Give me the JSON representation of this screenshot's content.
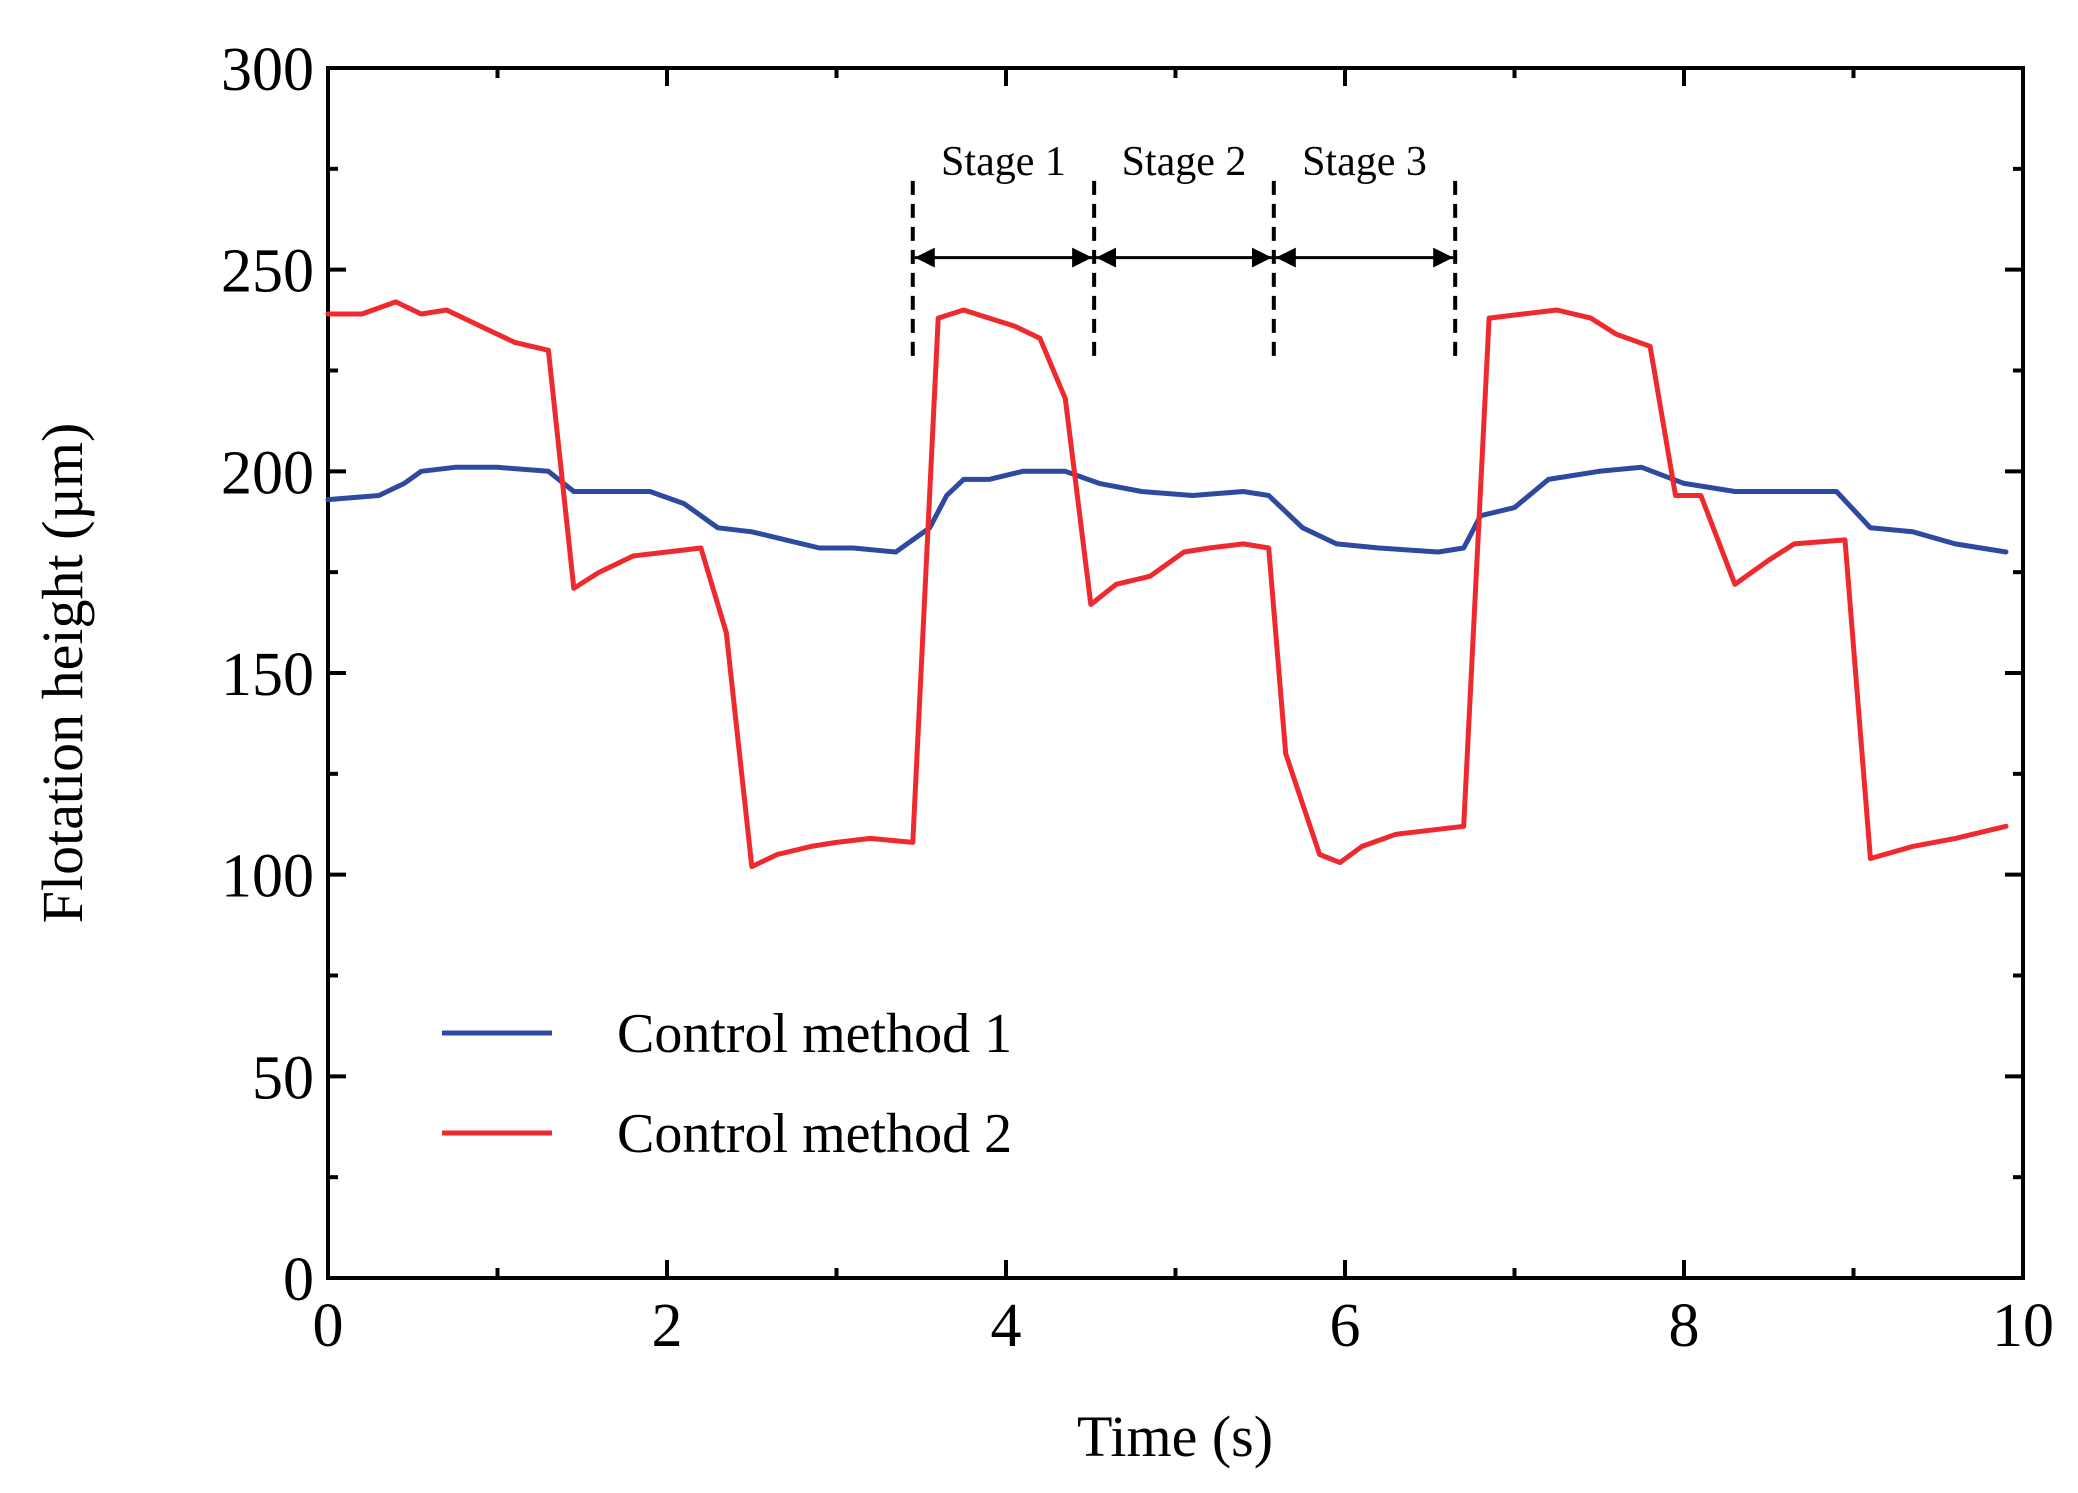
{
  "chart_data": {
    "type": "line",
    "title": "",
    "xlabel": "Time (s)",
    "ylabel": "Flotation height (µm)",
    "xlim": [
      0,
      10
    ],
    "ylim": [
      0,
      300
    ],
    "xticks": [
      0,
      2,
      4,
      6,
      8,
      10
    ],
    "yticks": [
      0,
      50,
      100,
      150,
      200,
      250,
      300
    ],
    "legend_location": "lower-left",
    "series": [
      {
        "name": "Control method 1",
        "color": "#2e4aa0",
        "x": [
          0,
          0.3,
          0.45,
          0.55,
          0.75,
          1.0,
          1.3,
          1.45,
          1.9,
          2.1,
          2.3,
          2.5,
          2.7,
          2.9,
          3.1,
          3.35,
          3.55,
          3.65,
          3.75,
          3.9,
          4.1,
          4.35,
          4.55,
          4.8,
          5.1,
          5.4,
          5.55,
          5.75,
          5.95,
          6.2,
          6.55,
          6.7,
          6.8,
          7.0,
          7.2,
          7.5,
          7.75,
          8.0,
          8.3,
          8.7,
          8.9,
          9.1,
          9.35,
          9.6,
          9.9
        ],
        "values": [
          193,
          194,
          197,
          200,
          201,
          201,
          200,
          195,
          195,
          192,
          186,
          185,
          183,
          181,
          181,
          180,
          186,
          194,
          198,
          198,
          200,
          200,
          197,
          195,
          194,
          195,
          194,
          186,
          182,
          181,
          180,
          181,
          189,
          191,
          198,
          200,
          201,
          197,
          195,
          195,
          195,
          186,
          185,
          182,
          180
        ]
      },
      {
        "name": "Control method 2",
        "color": "#ee2a2f",
        "x": [
          0,
          0.2,
          0.4,
          0.55,
          0.7,
          0.95,
          1.1,
          1.3,
          1.45,
          1.6,
          1.8,
          2.0,
          2.2,
          2.35,
          2.5,
          2.65,
          2.85,
          3.0,
          3.2,
          3.45,
          3.6,
          3.75,
          3.9,
          4.05,
          4.2,
          4.35,
          4.5,
          4.65,
          4.85,
          5.05,
          5.2,
          5.4,
          5.55,
          5.65,
          5.85,
          5.97,
          6.1,
          6.3,
          6.5,
          6.7,
          6.85,
          7.05,
          7.25,
          7.45,
          7.6,
          7.8,
          7.95,
          8.1,
          8.3,
          8.5,
          8.65,
          8.95,
          9.1,
          9.35,
          9.6,
          9.9
        ],
        "values": [
          239,
          239,
          242,
          239,
          240,
          235,
          232,
          230,
          171,
          175,
          179,
          180,
          181,
          160,
          102,
          105,
          107,
          108,
          109,
          108,
          238,
          240,
          238,
          236,
          233,
          218,
          167,
          172,
          174,
          180,
          181,
          182,
          181,
          130,
          105,
          103,
          107,
          110,
          111,
          112,
          238,
          239,
          240,
          238,
          234,
          231,
          194,
          194,
          172,
          178,
          182,
          183,
          104,
          107,
          109,
          112
        ]
      }
    ],
    "annotations": {
      "stages": [
        {
          "label": "Stage 1",
          "x_start": 3.45,
          "x_end": 4.52
        },
        {
          "label": "Stage 2",
          "x_start": 4.52,
          "x_end": 5.58
        },
        {
          "label": "Stage 3",
          "x_start": 5.58,
          "x_end": 6.65
        }
      ],
      "arrow_y": 253,
      "divider_y_range": [
        228,
        272
      ]
    }
  }
}
